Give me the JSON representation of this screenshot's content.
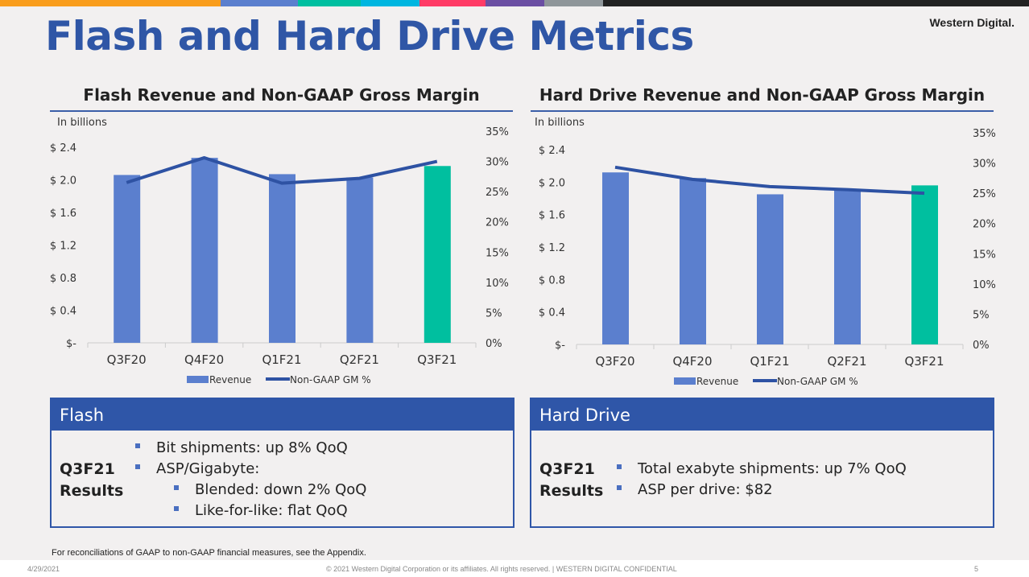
{
  "title": "Flash and Hard Drive Metrics",
  "logo": "Western Digital.",
  "stripe_colors": [
    "#f99d1c",
    "#5b7fce",
    "#00bfa0",
    "#00b6e0",
    "#ff3b66",
    "#6b4fa3",
    "#8f969a",
    "#222222"
  ],
  "colors": {
    "bar": "#5b7fce",
    "highlight": "#00bf9f",
    "line": "#2e52a3"
  },
  "chart_data": [
    {
      "type": "bar",
      "title": "Flash Revenue and Non-GAAP Gross Margin",
      "unit_label": "In billions",
      "categories": [
        "Q3F20",
        "Q4F20",
        "Q1F21",
        "Q2F21",
        "Q3F21"
      ],
      "series": [
        {
          "name": "Revenue",
          "type": "bar",
          "values": [
            2.06,
            2.27,
            2.07,
            2.03,
            2.17
          ]
        },
        {
          "name": "Non-GAAP GM %",
          "type": "line",
          "values": [
            26.5,
            30.6,
            26.4,
            27.2,
            30.0
          ]
        }
      ],
      "y_ticks": [
        "$-",
        "$ 0.4",
        "$ 0.8",
        "$ 1.2",
        "$ 1.6",
        "$ 2.0",
        "$ 2.4"
      ],
      "y2_ticks": [
        "0%",
        "5%",
        "10%",
        "15%",
        "20%",
        "25%",
        "30%",
        "35%"
      ],
      "ylim": [
        0,
        2.4
      ],
      "y2lim": [
        0,
        35
      ],
      "legend": [
        "Revenue",
        "Non-GAAP GM %"
      ],
      "legend_position": "bottom"
    },
    {
      "type": "bar",
      "title": "Hard Drive Revenue and Non-GAAP Gross Margin",
      "unit_label": "In billions",
      "categories": [
        "Q3F20",
        "Q4F20",
        "Q1F21",
        "Q2F21",
        "Q3F21"
      ],
      "series": [
        {
          "name": "Revenue",
          "type": "bar",
          "values": [
            2.12,
            2.05,
            1.85,
            1.9,
            1.96
          ]
        },
        {
          "name": "Non-GAAP GM %",
          "type": "line",
          "values": [
            29.3,
            27.3,
            26.1,
            25.6,
            25.0
          ]
        }
      ],
      "y_ticks": [
        "$-",
        "$ 0.4",
        "$ 0.8",
        "$ 1.2",
        "$ 1.6",
        "$ 2.0",
        "$ 2.4"
      ],
      "y2_ticks": [
        "0%",
        "5%",
        "10%",
        "15%",
        "20%",
        "25%",
        "30%",
        "35%"
      ],
      "ylim": [
        0,
        2.4
      ],
      "y2lim": [
        0,
        35
      ],
      "legend": [
        "Revenue",
        "Non-GAAP GM %"
      ],
      "legend_position": "bottom"
    }
  ],
  "flash": {
    "header": "Flash",
    "results": "Q3F21 Results",
    "bullets": [
      "Bit shipments: up 8% QoQ",
      "ASP/Gigabyte:"
    ],
    "sub_bullets": [
      "Blended: down 2% QoQ",
      "Like-for-like: flat QoQ"
    ]
  },
  "hdd": {
    "header": "Hard Drive",
    "results": "Q3F21 Results",
    "bullets": [
      "Total exabyte shipments: up 7% QoQ",
      "ASP per drive: $82"
    ]
  },
  "note": "For reconciliations of GAAP to non-GAAP financial measures, see the Appendix.",
  "footer": {
    "date": "4/29/2021",
    "copyright": "© 2021 Western Digital Corporation or its affiliates. All rights reserved.  |  WESTERN DIGITAL CONFIDENTIAL",
    "page": "5"
  }
}
